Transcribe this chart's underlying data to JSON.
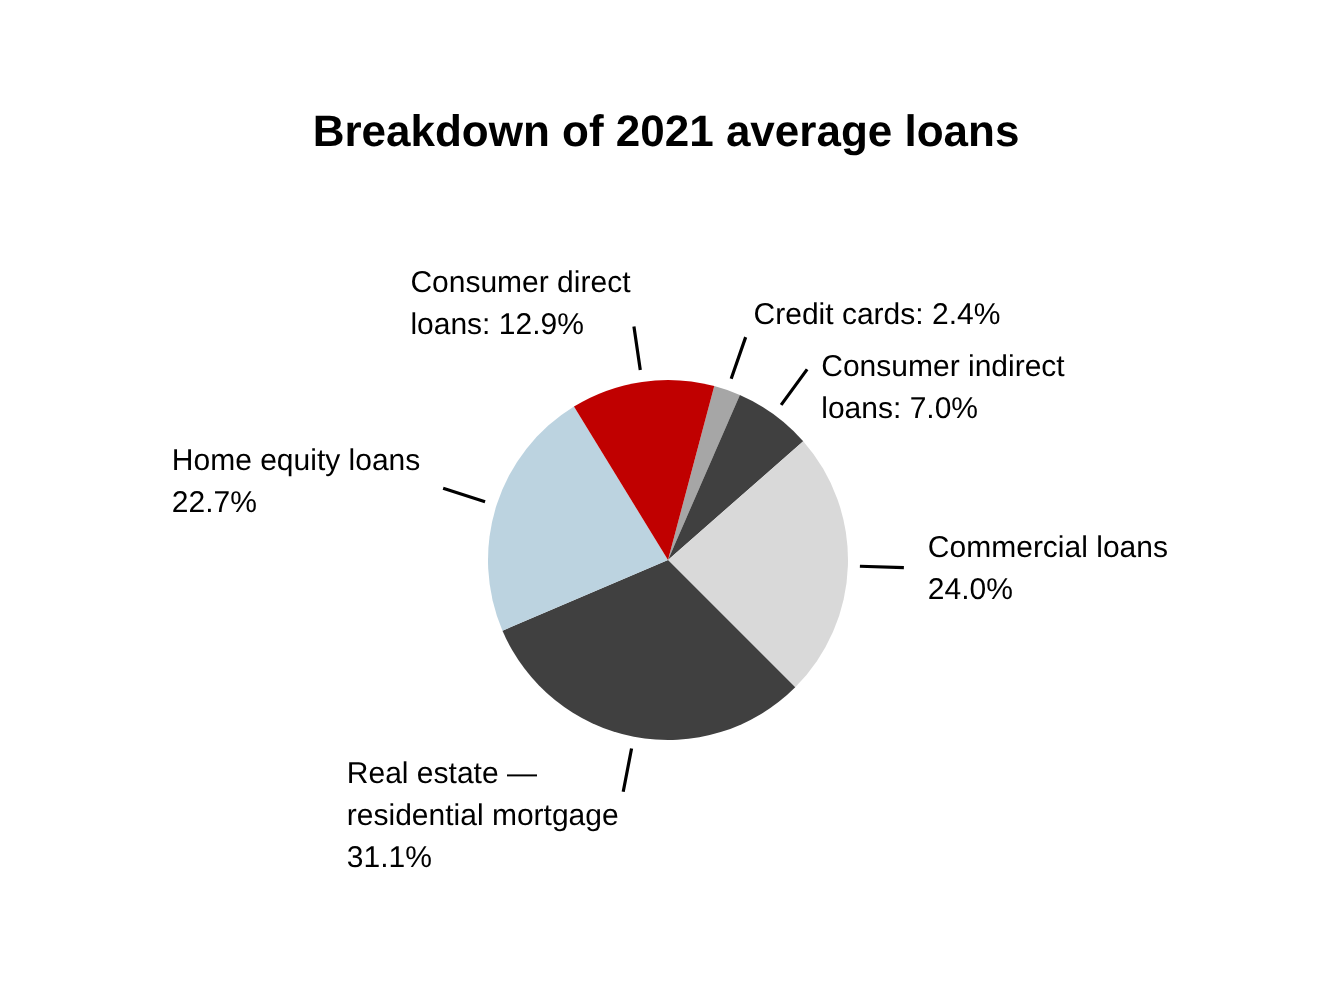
{
  "chart_data": {
    "type": "pie",
    "title": "Breakdown of 2021 average loans",
    "categories": [
      "Credit cards",
      "Consumer indirect loans",
      "Commercial loans",
      "Real estate — residential mortgage",
      "Home equity loans",
      "Consumer direct loans"
    ],
    "values": [
      2.4,
      7.0,
      24.0,
      31.1,
      22.7,
      12.9
    ],
    "value_labels": [
      ": 2.4%",
      ": 7.0%",
      "24.0%",
      "31.1%",
      "22.7%",
      ": 12.9%"
    ],
    "colors": [
      "#a6a6a6",
      "#404040",
      "#d9d9d9",
      "#404040",
      "#bcd3e0",
      "#c00000"
    ],
    "legend": false
  }
}
